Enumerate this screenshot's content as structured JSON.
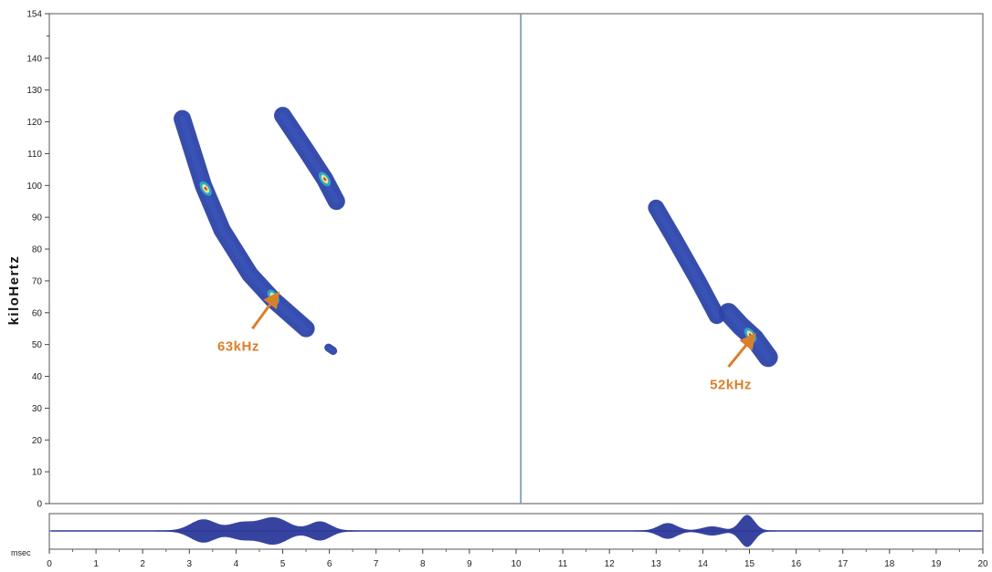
{
  "chart_data": {
    "type": "spectrogram",
    "ylabel": "kiloHertz",
    "xunit_label": "msec",
    "xlim": [
      0,
      20
    ],
    "ylim": [
      0,
      154
    ],
    "y_ticks": [
      0,
      10,
      20,
      30,
      40,
      50,
      60,
      70,
      80,
      90,
      100,
      110,
      120,
      130,
      140,
      154
    ],
    "x_ticks": [
      0,
      1,
      2,
      3,
      4,
      5,
      6,
      7,
      8,
      9,
      10,
      11,
      12,
      13,
      14,
      15,
      16,
      17,
      18,
      19,
      20
    ],
    "divider_x": 10.1,
    "colors": {
      "energy_low": "#2c43a8",
      "energy_mid": "#2ea6c8",
      "energy_high": "#e4e890",
      "peak": "#d8402a",
      "annotation": "#d9802a",
      "divider": "#6a9ab8",
      "waveform": "#2c3a9a"
    },
    "calls": [
      {
        "name": "call-1-main",
        "points": [
          [
            2.85,
            121
          ],
          [
            3.3,
            100
          ],
          [
            3.7,
            86
          ],
          [
            4.3,
            72
          ],
          [
            4.8,
            64
          ],
          [
            5.5,
            55
          ]
        ],
        "width_khz": 3.2
      },
      {
        "name": "call-1-harmonic",
        "points": [
          [
            5.0,
            122
          ],
          [
            5.5,
            111
          ],
          [
            5.9,
            102
          ],
          [
            6.15,
            95
          ]
        ],
        "width_khz": 3.2
      },
      {
        "name": "call-1-fragment",
        "points": [
          [
            5.98,
            49
          ],
          [
            6.08,
            48
          ]
        ],
        "width_khz": 1.5
      },
      {
        "name": "call-2-upper",
        "points": [
          [
            13.0,
            93
          ],
          [
            13.4,
            83
          ],
          [
            13.9,
            70
          ],
          [
            14.3,
            59
          ]
        ],
        "width_khz": 3.0
      },
      {
        "name": "call-2-lower",
        "points": [
          [
            14.55,
            60
          ],
          [
            14.8,
            56
          ],
          [
            15.1,
            52
          ],
          [
            15.4,
            46
          ]
        ],
        "width_khz": 3.6
      }
    ],
    "hotspots": [
      {
        "name": "hotspot-1",
        "x": 3.35,
        "y": 99
      },
      {
        "name": "hotspot-2",
        "x": 4.8,
        "y": 65
      },
      {
        "name": "hotspot-3",
        "x": 5.9,
        "y": 102
      },
      {
        "name": "hotspot-4",
        "x": 15.02,
        "y": 53
      }
    ],
    "annotations": [
      {
        "label": "63kHz",
        "x": 3.6,
        "y": 48,
        "arrow_from": [
          4.35,
          55
        ],
        "arrow_to": [
          4.85,
          65
        ]
      },
      {
        "label": "52kHz",
        "x": 14.15,
        "y": 36,
        "arrow_from": [
          14.55,
          43
        ],
        "arrow_to": [
          15.05,
          52
        ]
      }
    ],
    "waveform": {
      "bursts": [
        {
          "center": 3.3,
          "width": 0.38,
          "amp": 0.68
        },
        {
          "center": 4.1,
          "width": 0.35,
          "amp": 0.45
        },
        {
          "center": 4.8,
          "width": 0.45,
          "amp": 0.8
        },
        {
          "center": 5.8,
          "width": 0.32,
          "amp": 0.55
        },
        {
          "center": 13.25,
          "width": 0.28,
          "amp": 0.45
        },
        {
          "center": 14.2,
          "width": 0.3,
          "amp": 0.25
        },
        {
          "center": 14.95,
          "width": 0.22,
          "amp": 0.95
        }
      ]
    }
  }
}
